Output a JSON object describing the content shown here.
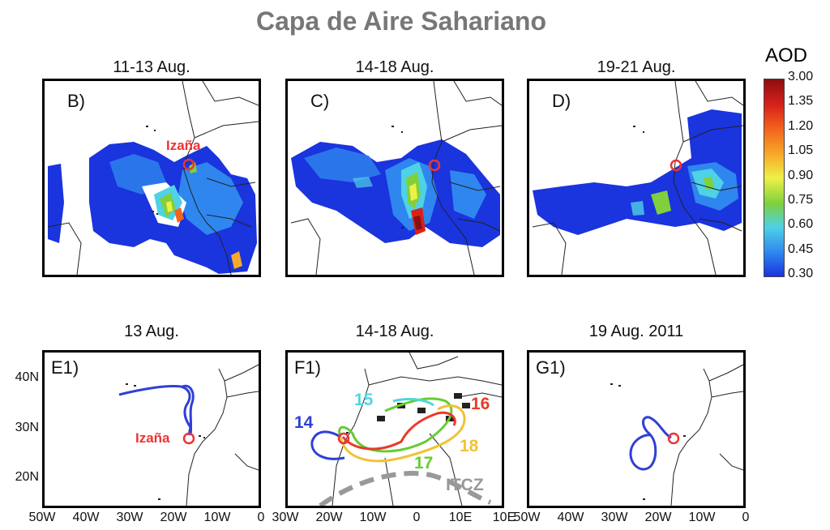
{
  "title": "Capa de Aire Sahariano",
  "panels_top": [
    {
      "date": "11-13 Aug.",
      "label": "B)",
      "station": "Izaña"
    },
    {
      "date": "14-18 Aug.",
      "label": "C)"
    },
    {
      "date": "19-21 Aug.",
      "label": "D)"
    }
  ],
  "colorbar": {
    "title": "AOD",
    "ticks": [
      "3.00",
      "1.35",
      "1.20",
      "1.05",
      "0.90",
      "0.75",
      "0.60",
      "0.45",
      "0.30"
    ],
    "colors": [
      "#8b0f0f",
      "#d8211b",
      "#f2631c",
      "#f6a92a",
      "#eef048",
      "#7fd03c",
      "#4fd1e6",
      "#2f86ee",
      "#1a34de"
    ]
  },
  "panels_bottom": [
    {
      "date": "13 Aug.",
      "label": "E1)",
      "station": "Izaña"
    },
    {
      "date": "14-18 Aug.",
      "label": "F1)",
      "days": [
        {
          "text": "14",
          "color": "#2f3fd6"
        },
        {
          "text": "15",
          "color": "#4fd6e0"
        },
        {
          "text": "16",
          "color": "#e83a2a"
        },
        {
          "text": "17",
          "color": "#66cc33"
        },
        {
          "text": "18",
          "color": "#f1c232"
        }
      ],
      "itcz": "ITCZ"
    },
    {
      "date": "19 Aug. 2011",
      "label": "G1)"
    }
  ],
  "yaxis": [
    "40N",
    "30N",
    "20N"
  ],
  "xaxis_1": [
    "50W",
    "40W",
    "30W",
    "20W",
    "10W",
    "0"
  ],
  "xaxis_2": [
    "30W",
    "20W",
    "10W",
    "0",
    "10E",
    "10E"
  ],
  "xaxis_3": [
    "50W",
    "40W",
    "30W",
    "20W",
    "10W",
    "0"
  ]
}
